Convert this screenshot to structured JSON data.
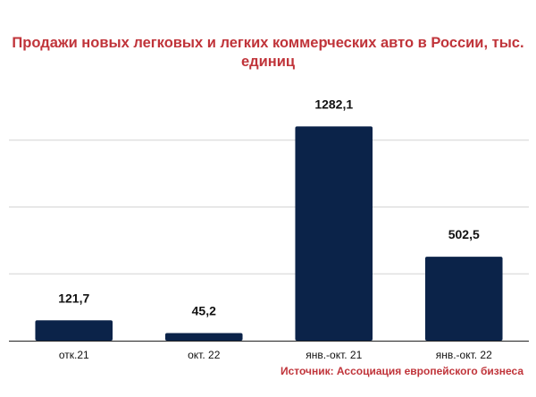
{
  "chart": {
    "title_line1": "Продажи новых легковых и легких коммерческих авто в России, тыс.",
    "title_line2": "единиц",
    "source": "Источник: Ассоциация европейского бизнеса"
  },
  "chart_data": {
    "type": "bar",
    "title": "Продажи новых легковых и легких коммерческих авто в России, тыс. единиц",
    "categories": [
      "отк.21",
      "окт. 22",
      "янв.-окт. 21",
      "янв.-окт. 22"
    ],
    "values": [
      121.7,
      45.2,
      1282.1,
      502.5
    ],
    "value_labels": [
      "121,7",
      "45,2",
      "1282,1",
      "502,5"
    ],
    "ylim": [
      0,
      1600
    ],
    "gridlines": [
      400,
      800,
      1200
    ],
    "y_tick_labels_shown": false,
    "grid": true,
    "legend": "none",
    "colors": {
      "bar": "#0b2349",
      "grid": "#d4d4d4",
      "axis": "#222222",
      "label": "#111111",
      "title": "#c0343a"
    }
  }
}
